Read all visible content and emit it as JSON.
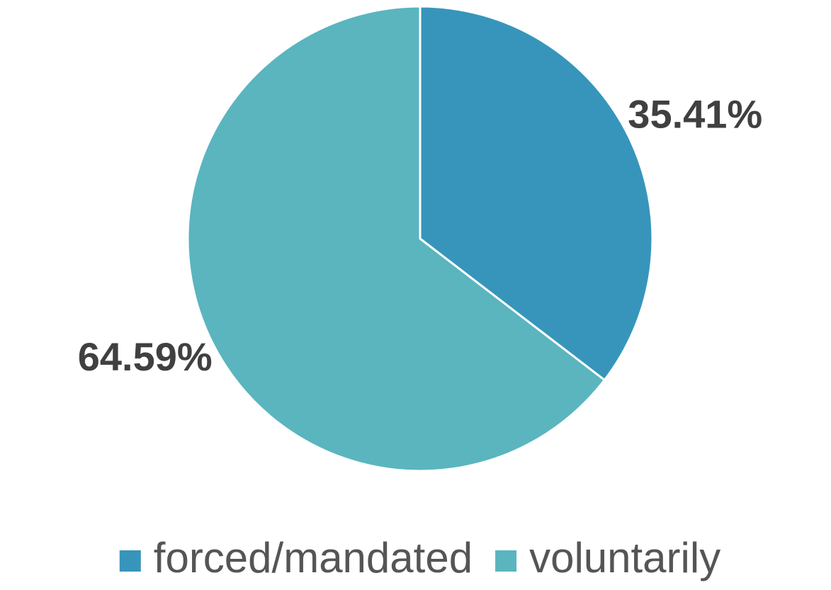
{
  "chart_data": {
    "type": "pie",
    "categories": [
      "forced/mandated",
      "voluntarily"
    ],
    "values": [
      35.41,
      64.59
    ],
    "value_labels": [
      "35.41%",
      "64.59%"
    ],
    "colors": [
      "#3795bb",
      "#5ab5bf"
    ],
    "legend": "bottom"
  }
}
